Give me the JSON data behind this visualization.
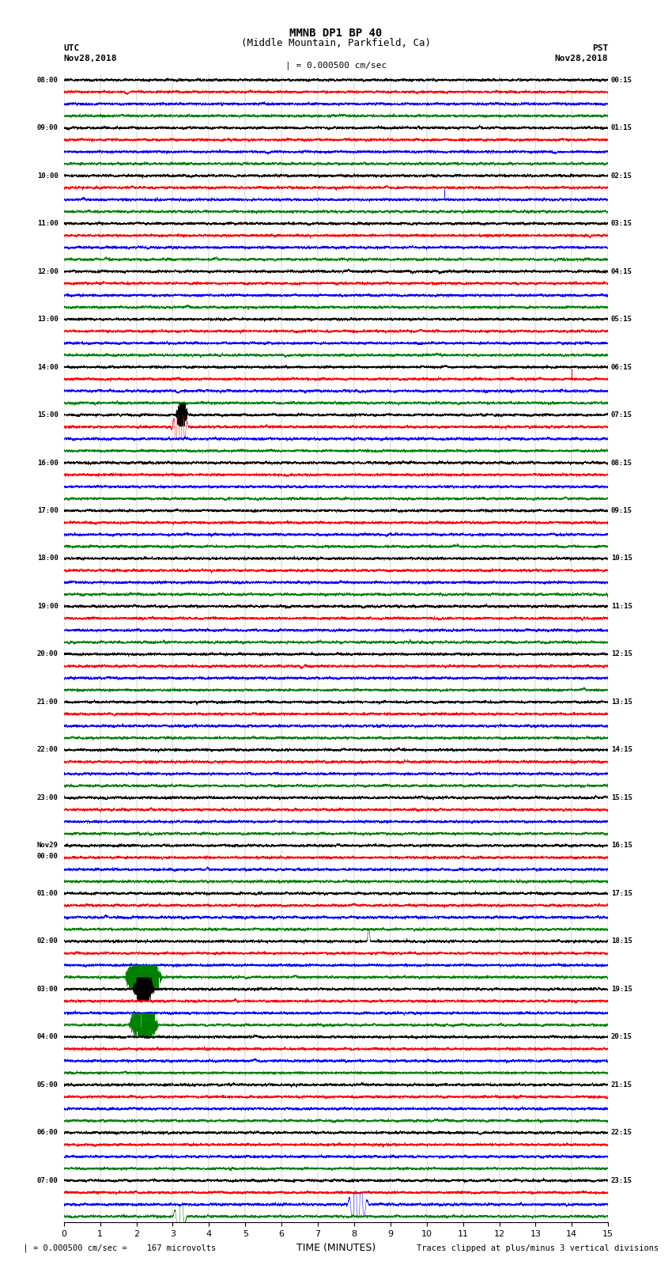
{
  "title_line1": "MMNB DP1 BP 40",
  "title_line2": "(Middle Mountain, Parkfield, Ca)",
  "scale_label": "| = 0.000500 cm/sec",
  "left_timezone": "UTC",
  "left_date": "Nov28,2018",
  "right_timezone": "PST",
  "right_date": "Nov28,2018",
  "xlabel": "TIME (MINUTES)",
  "footer_left": "  | = 0.000500 cm/sec =    167 microvolts",
  "footer_right": "Traces clipped at plus/minus 3 vertical divisions",
  "xmin": 0,
  "xmax": 15,
  "xticks": [
    0,
    1,
    2,
    3,
    4,
    5,
    6,
    7,
    8,
    9,
    10,
    11,
    12,
    13,
    14,
    15
  ],
  "colors": [
    "black",
    "red",
    "blue",
    "green"
  ],
  "fig_width": 8.5,
  "fig_height": 16.13,
  "left_labels_utc": [
    "08:00",
    "09:00",
    "10:00",
    "11:00",
    "12:00",
    "13:00",
    "14:00",
    "15:00",
    "16:00",
    "17:00",
    "18:00",
    "19:00",
    "20:00",
    "21:00",
    "22:00",
    "23:00",
    "Nov29\n00:00",
    "01:00",
    "02:00",
    "03:00",
    "04:00",
    "05:00",
    "06:00",
    "07:00"
  ],
  "right_labels_pst": [
    "00:15",
    "01:15",
    "02:15",
    "03:15",
    "04:15",
    "05:15",
    "06:15",
    "07:15",
    "08:15",
    "09:15",
    "10:15",
    "11:15",
    "12:15",
    "13:15",
    "14:15",
    "15:15",
    "16:15",
    "17:15",
    "18:15",
    "19:15",
    "20:15",
    "21:15",
    "22:15",
    "23:15"
  ],
  "n_groups": 24,
  "traces_per_group": 4,
  "noise_amp": 0.32,
  "clip_divs": 3
}
